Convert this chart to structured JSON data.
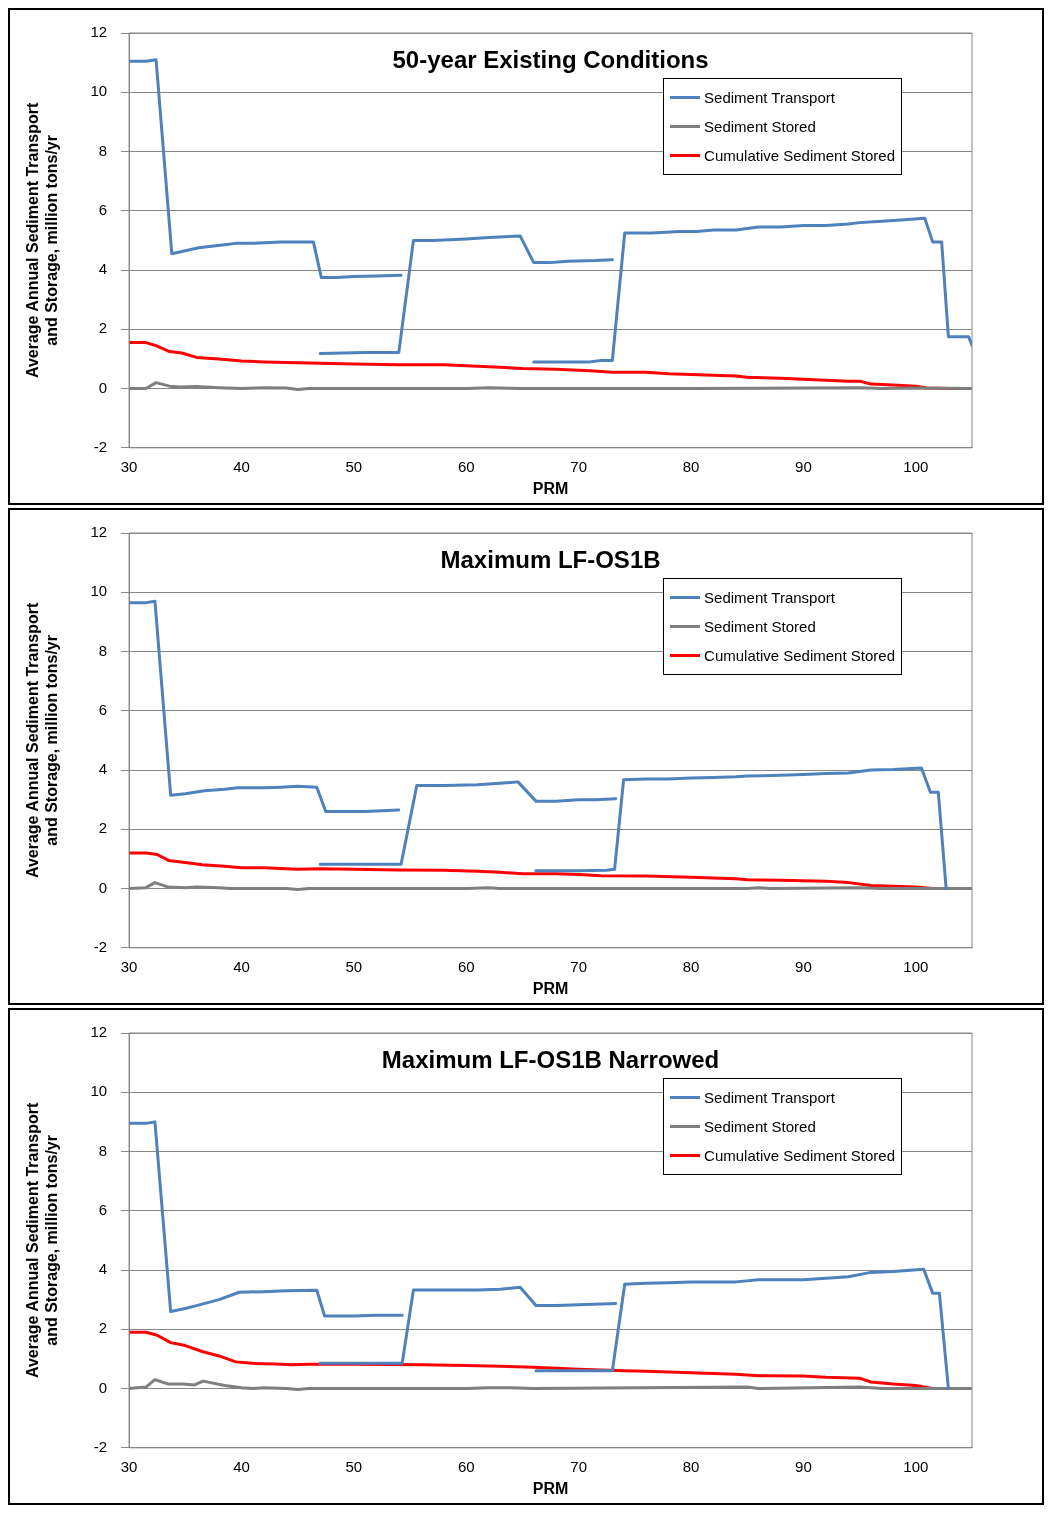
{
  "chart_data": [
    {
      "type": "line",
      "title": "50-year Existing Conditions",
      "xlabel": "PRM",
      "ylabel": "Average Annual Sediment Transport and Storage, million tons/yr",
      "xlim": [
        30,
        105
      ],
      "xticks": [
        30,
        40,
        50,
        60,
        70,
        80,
        90,
        100
      ],
      "ylim": [
        -2,
        12
      ],
      "yticks": [
        -2,
        0,
        2,
        4,
        6,
        8,
        10,
        12
      ],
      "grid": "y",
      "legend": "top right",
      "marker": "none",
      "line_style": "solid",
      "series": [
        {
          "name": "Sediment Transport",
          "color": "#4f81bd",
          "x": [
            30,
            31.5,
            32.4,
            33.8,
            35,
            36.2,
            38.5,
            39.5,
            41,
            43.5,
            46.4,
            47.1,
            48.5,
            50,
            52,
            54.2,
            null,
            47,
            49,
            51,
            54,
            55.3,
            57,
            60,
            62,
            64.8,
            66,
            67.5,
            69,
            71.5,
            73,
            null,
            66,
            69,
            71,
            72,
            73,
            74.1,
            76.5,
            79,
            80.5,
            82,
            84,
            86,
            88,
            90,
            92,
            94,
            95,
            97,
            99,
            100.8,
            101.5,
            102.3,
            102.9,
            104.7,
            105
          ],
          "values": [
            11.05,
            11.05,
            11.1,
            4.55,
            4.65,
            4.75,
            4.85,
            4.9,
            4.9,
            4.95,
            4.95,
            3.75,
            3.75,
            3.78,
            3.8,
            3.82,
            null,
            1.18,
            1.2,
            1.22,
            1.22,
            5.0,
            5.0,
            5.05,
            5.1,
            5.15,
            4.25,
            4.25,
            4.3,
            4.32,
            4.35,
            null,
            0.9,
            0.9,
            0.9,
            0.95,
            0.95,
            5.25,
            5.25,
            5.3,
            5.3,
            5.35,
            5.35,
            5.45,
            5.45,
            5.5,
            5.5,
            5.55,
            5.6,
            5.65,
            5.7,
            5.75,
            4.95,
            4.95,
            1.75,
            1.75,
            1.45
          ]
        },
        {
          "name": "Sediment Stored",
          "color": "#7f7f7f",
          "x": [
            30,
            31.5,
            32.4,
            33.6,
            34.5,
            36,
            38,
            40,
            42,
            44,
            45,
            46,
            60,
            62,
            65,
            70,
            80,
            95,
            97,
            100,
            105
          ],
          "values": [
            0,
            0,
            0.2,
            0.08,
            0.05,
            0.07,
            0.03,
            0,
            0.03,
            0.02,
            -0.03,
            0,
            0,
            0.03,
            0,
            0,
            0,
            0.03,
            0,
            0.02,
            0
          ]
        },
        {
          "name": "Cumulative Sediment Stored",
          "color": "#ff0000",
          "x": [
            30,
            31.5,
            32.4,
            33.6,
            34.7,
            36,
            38,
            40,
            42,
            44,
            46,
            47,
            50,
            54,
            58,
            61,
            63,
            65,
            68,
            71,
            73,
            76,
            78,
            82,
            84,
            85,
            88,
            91,
            94,
            95,
            96,
            98,
            100,
            101,
            103,
            105
          ],
          "values": [
            1.55,
            1.55,
            1.45,
            1.25,
            1.2,
            1.05,
            1.0,
            0.93,
            0.9,
            0.88,
            0.86,
            0.85,
            0.83,
            0.8,
            0.8,
            0.75,
            0.72,
            0.68,
            0.65,
            0.6,
            0.55,
            0.55,
            0.5,
            0.45,
            0.42,
            0.38,
            0.35,
            0.3,
            0.25,
            0.25,
            0.15,
            0.12,
            0.08,
            0.02,
            0,
            0
          ]
        }
      ]
    },
    {
      "type": "line",
      "title": "Maximum LF-OS1B",
      "xlabel": "PRM",
      "ylabel": "Average Annual Sediment Transport and Storage, million tons/yr",
      "xlim": [
        30,
        105
      ],
      "xticks": [
        30,
        40,
        50,
        60,
        70,
        80,
        90,
        100
      ],
      "ylim": [
        -2,
        12
      ],
      "yticks": [
        -2,
        0,
        2,
        4,
        6,
        8,
        10,
        12
      ],
      "grid": "y",
      "legend": "top right",
      "marker": "none",
      "line_style": "solid",
      "series": [
        {
          "name": "Sediment Transport",
          "color": "#4f81bd",
          "x": [
            30,
            31.5,
            32.3,
            33.7,
            35,
            36.7,
            38.5,
            39.7,
            42,
            43.5,
            45,
            46.7,
            47.5,
            49,
            51,
            54,
            null,
            47,
            50,
            54.2,
            55.6,
            58,
            61,
            63,
            64.6,
            66.2,
            68,
            70,
            71.5,
            73.3,
            null,
            66.2,
            70,
            72.5,
            73.2,
            74,
            76,
            78,
            80,
            82,
            84,
            85,
            88,
            90,
            92,
            94,
            96,
            98,
            100.5,
            101.3,
            102,
            102.7
          ],
          "values": [
            9.65,
            9.65,
            9.7,
            3.15,
            3.2,
            3.3,
            3.35,
            3.4,
            3.4,
            3.42,
            3.45,
            3.42,
            2.6,
            2.6,
            2.6,
            2.65,
            null,
            0.82,
            0.82,
            0.82,
            3.48,
            3.48,
            3.5,
            3.55,
            3.6,
            2.95,
            2.95,
            3.0,
            3.0,
            3.03,
            null,
            0.6,
            0.6,
            0.62,
            0.65,
            3.67,
            3.7,
            3.7,
            3.73,
            3.75,
            3.77,
            3.8,
            3.82,
            3.85,
            3.88,
            3.9,
            4.0,
            4.02,
            4.07,
            3.25,
            3.25,
            0
          ]
        },
        {
          "name": "Sediment Stored",
          "color": "#7f7f7f",
          "x": [
            30,
            31.5,
            32.3,
            33.5,
            35,
            36,
            38,
            39,
            44,
            45,
            46,
            60,
            62,
            63,
            85,
            86,
            87,
            95,
            97,
            105
          ],
          "values": [
            0,
            0.03,
            0.2,
            0.05,
            0.03,
            0.05,
            0.03,
            0,
            0,
            -0.03,
            0,
            0,
            0.03,
            0,
            0,
            0.03,
            0,
            0.03,
            0,
            0
          ]
        },
        {
          "name": "Cumulative Sediment Stored",
          "color": "#ff0000",
          "x": [
            30,
            31.5,
            32.5,
            33.5,
            35,
            36.5,
            38.5,
            40,
            42,
            44,
            45,
            47,
            50,
            54,
            58,
            61,
            63,
            65,
            68,
            70,
            72,
            76,
            80,
            84,
            85,
            88,
            92,
            94,
            96,
            98,
            100,
            101.5,
            105
          ],
          "values": [
            1.2,
            1.2,
            1.15,
            0.95,
            0.88,
            0.8,
            0.75,
            0.7,
            0.7,
            0.67,
            0.65,
            0.67,
            0.65,
            0.63,
            0.62,
            0.58,
            0.55,
            0.5,
            0.5,
            0.47,
            0.43,
            0.42,
            0.38,
            0.33,
            0.3,
            0.28,
            0.25,
            0.2,
            0.1,
            0.08,
            0.05,
            0,
            0
          ]
        }
      ]
    },
    {
      "type": "line",
      "title": "Maximum LF-OS1B Narrowed",
      "xlabel": "PRM",
      "ylabel": "Average Annual Sediment Transport and Storage, million tons/yr",
      "xlim": [
        30,
        105
      ],
      "xticks": [
        30,
        40,
        50,
        60,
        70,
        80,
        90,
        100
      ],
      "ylim": [
        -2,
        12
      ],
      "yticks": [
        -2,
        0,
        2,
        4,
        6,
        8,
        10,
        12
      ],
      "grid": "y",
      "legend": "top right",
      "marker": "none",
      "line_style": "solid",
      "series": [
        {
          "name": "Sediment Transport",
          "color": "#4f81bd",
          "x": [
            30,
            31.5,
            32.3,
            33.7,
            35,
            36,
            38,
            39.8,
            42,
            44,
            46.7,
            47.4,
            50,
            52,
            54.3,
            null,
            47,
            50,
            54.3,
            55.3,
            58,
            61,
            63,
            64.8,
            66.2,
            68,
            70,
            72,
            73.3,
            null,
            66.2,
            70,
            73,
            74.1,
            76,
            78,
            80,
            84,
            86,
            88,
            90,
            92,
            94,
            96,
            98,
            100.7,
            101.5,
            102.1,
            102.9
          ],
          "values": [
            8.95,
            8.95,
            9.0,
            2.6,
            2.7,
            2.8,
            3.0,
            3.25,
            3.27,
            3.3,
            3.32,
            2.45,
            2.45,
            2.47,
            2.47,
            null,
            0.85,
            0.85,
            0.85,
            3.33,
            3.33,
            3.33,
            3.35,
            3.42,
            2.8,
            2.8,
            2.83,
            2.85,
            2.87,
            null,
            0.6,
            0.6,
            0.6,
            3.52,
            3.55,
            3.57,
            3.6,
            3.6,
            3.67,
            3.67,
            3.67,
            3.72,
            3.77,
            3.92,
            3.95,
            4.03,
            3.22,
            3.22,
            0
          ]
        },
        {
          "name": "Sediment Stored",
          "color": "#7f7f7f",
          "x": [
            30,
            31.5,
            32.3,
            33.5,
            34.8,
            35.8,
            36.6,
            38.5,
            40,
            41,
            42,
            44,
            45,
            46,
            60,
            62,
            64,
            66,
            85,
            86,
            95,
            97,
            105
          ],
          "values": [
            0,
            0.05,
            0.3,
            0.15,
            0.15,
            0.12,
            0.25,
            0.1,
            0.03,
            0,
            0.03,
            0,
            -0.03,
            0,
            0,
            0.03,
            0.03,
            0,
            0.05,
            0,
            0.05,
            0,
            0
          ]
        },
        {
          "name": "Cumulative Sediment Stored",
          "color": "#ff0000",
          "x": [
            30,
            31.5,
            32.5,
            33.7,
            35,
            36.5,
            38,
            39.5,
            41,
            43,
            44.5,
            46,
            50,
            56,
            60,
            63,
            66,
            70,
            72,
            74,
            76,
            80,
            84,
            86,
            90,
            92,
            95,
            96,
            98,
            100,
            101.5,
            105
          ],
          "values": [
            1.9,
            1.9,
            1.8,
            1.55,
            1.45,
            1.25,
            1.1,
            0.9,
            0.85,
            0.83,
            0.8,
            0.82,
            0.82,
            0.8,
            0.78,
            0.75,
            0.72,
            0.65,
            0.63,
            0.6,
            0.58,
            0.53,
            0.48,
            0.43,
            0.42,
            0.38,
            0.35,
            0.22,
            0.15,
            0.1,
            0,
            0
          ]
        }
      ]
    }
  ]
}
